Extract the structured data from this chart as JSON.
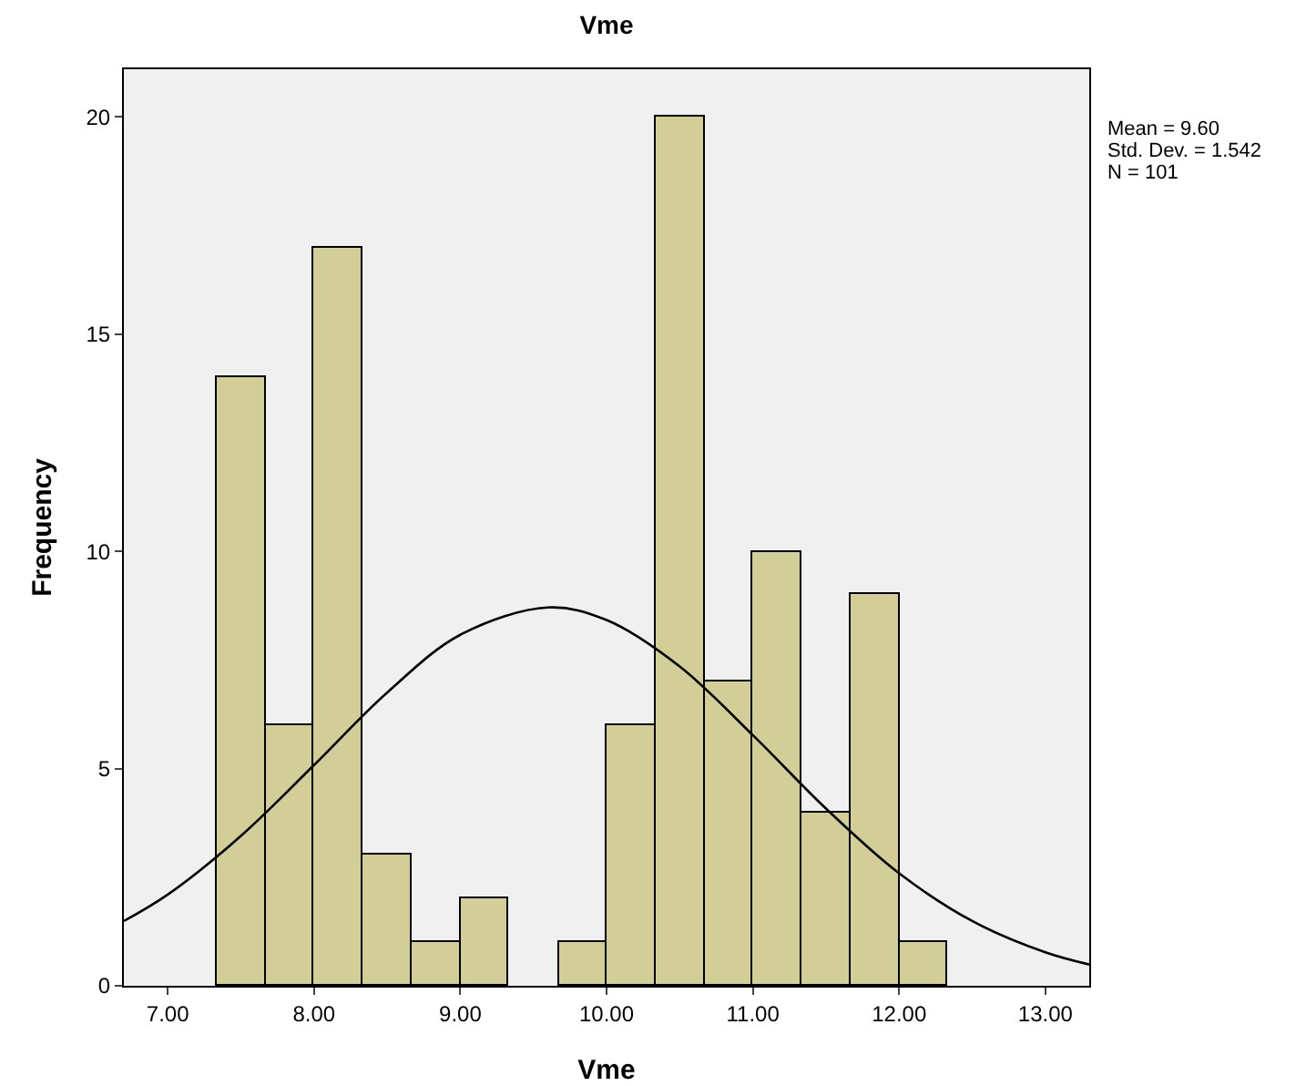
{
  "chart_data": {
    "type": "histogram",
    "title": "Vme",
    "xlabel": "Vme",
    "ylabel": "Frequency",
    "bins": [
      7.33,
      7.67,
      8.0,
      8.33,
      8.67,
      9.0,
      9.33,
      9.67,
      10.0,
      10.33,
      10.67,
      11.0,
      11.33,
      11.67,
      12.0,
      12.33
    ],
    "values": [
      14,
      6,
      17,
      3,
      1,
      2,
      0,
      1,
      6,
      20,
      7,
      10,
      4,
      9,
      1
    ],
    "color": "#d3ce97",
    "series": [
      {
        "type": "line",
        "color": "#000000",
        "x": [
          6.7,
          7.0,
          7.5,
          8.0,
          8.5,
          9.0,
          9.6,
          10.0,
          10.5,
          11.0,
          11.5,
          12.0,
          12.5,
          13.0,
          13.3
        ],
        "values": [
          1.49,
          2.1,
          3.45,
          5.08,
          6.75,
          8.08,
          8.71,
          8.42,
          7.35,
          5.77,
          4.08,
          2.59,
          1.49,
          0.77,
          0.49
        ]
      }
    ],
    "xlim": [
      6.7,
      13.3
    ],
    "xticks": [
      {
        "value": 7,
        "label": "7.00"
      },
      {
        "value": 8,
        "label": "8.00"
      },
      {
        "value": 9,
        "label": "9.00"
      },
      {
        "value": 10,
        "label": "10.00"
      },
      {
        "value": 11,
        "label": "11.00"
      },
      {
        "value": 12,
        "label": "12.00"
      },
      {
        "value": 13,
        "label": "13.00"
      }
    ],
    "ylim": [
      0,
      21.1
    ],
    "yticks": [
      0,
      5,
      10,
      15,
      20
    ],
    "grid": false,
    "legend": false,
    "annotations": [
      "Mean = 9.60",
      "Std. Dev. = 1.542",
      "N = 101"
    ]
  }
}
